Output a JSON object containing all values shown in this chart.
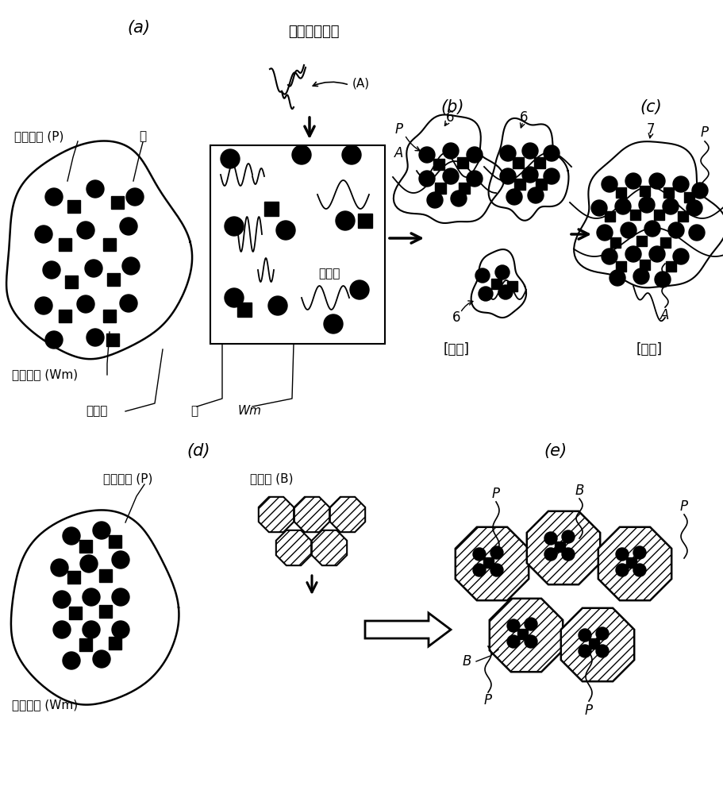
{
  "bg_color": "#ffffff",
  "label_a": "(a)",
  "label_b": "(b)",
  "label_c": "(c)",
  "label_d": "(d)",
  "label_e": "(e)",
  "title_a": "高分子凝聚剂",
  "label_A_paren": "(A)",
  "label_polymer": "聚合物",
  "label_water": "水",
  "label_Wm": "Wm",
  "label_powder": "粉体粒子 (P)",
  "label_suspended": "悬浮涨水 (Wm)",
  "label_coagulation": "[凝结]",
  "label_flocculation": "[凝聚]",
  "label_absorbent": "吸水剂 (B)"
}
